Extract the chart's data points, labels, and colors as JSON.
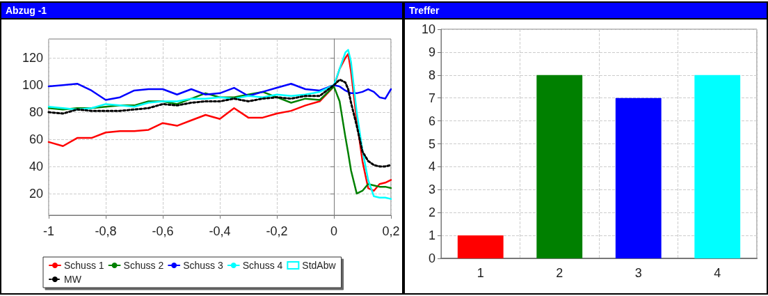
{
  "chart_data": [
    {
      "type": "line",
      "title": "Abzug -1",
      "x": [
        -1,
        -0.95,
        -0.9,
        -0.85,
        -0.8,
        -0.75,
        -0.7,
        -0.65,
        -0.6,
        -0.55,
        -0.5,
        -0.45,
        -0.4,
        -0.35,
        -0.3,
        -0.25,
        -0.2,
        -0.15,
        -0.1,
        -0.05,
        0,
        0.02,
        0.04,
        0.05,
        0.06,
        0.08,
        0.1,
        0.12,
        0.14,
        0.16,
        0.18,
        0.2
      ],
      "series": [
        {
          "name": "Schuss 1",
          "color": "#ff0000",
          "line_style": "solid",
          "values": [
            58,
            55,
            61,
            61,
            65,
            66,
            66,
            67,
            72,
            70,
            74,
            78,
            75,
            83,
            76,
            76,
            79,
            81,
            85,
            88,
            99,
            112,
            120,
            123,
            110,
            74,
            44,
            24,
            22,
            27,
            28,
            30
          ]
        },
        {
          "name": "Schuss 2",
          "color": "#008000",
          "line_style": "solid",
          "values": [
            83,
            82,
            83,
            83,
            84,
            85,
            85,
            88,
            88,
            86,
            90,
            94,
            91,
            91,
            93,
            95,
            91,
            87,
            90,
            89,
            99,
            88,
            62,
            50,
            37,
            20,
            22,
            27,
            26,
            25,
            25,
            24
          ]
        },
        {
          "name": "Schuss 3",
          "color": "#0000ff",
          "line_style": "solid",
          "values": [
            99,
            100,
            101,
            96,
            89,
            91,
            96,
            97,
            97,
            93,
            97,
            93,
            94,
            98,
            92,
            95,
            98,
            101,
            97,
            96,
            100,
            99,
            96,
            95,
            94,
            94,
            95,
            97,
            95,
            91,
            90,
            97
          ]
        },
        {
          "name": "Schuss 4",
          "color": "#00ffff",
          "line_style": "solid",
          "values": [
            84,
            83,
            82,
            83,
            86,
            85,
            84,
            87,
            88,
            88,
            90,
            90,
            91,
            90,
            92,
            91,
            93,
            92,
            93,
            95,
            100,
            112,
            124,
            126,
            117,
            80,
            52,
            30,
            18,
            17,
            17,
            16
          ]
        },
        {
          "name": "StdAbw",
          "color": "#00ffff",
          "marker": "square",
          "values": [
            null,
            null,
            null,
            null,
            null,
            null,
            null,
            null,
            null,
            null,
            null,
            null,
            null,
            null,
            null,
            null,
            null,
            null,
            null,
            null,
            null,
            null,
            null,
            null,
            null,
            null,
            null,
            null,
            null,
            null,
            null,
            null
          ]
        },
        {
          "name": "MW",
          "color": "#000000",
          "line_style": "dotted",
          "values": [
            80,
            79,
            82,
            81,
            81,
            81,
            82,
            83,
            86,
            85,
            87,
            88,
            88,
            90,
            88,
            90,
            91,
            90,
            92,
            92,
            100,
            104,
            102,
            97,
            87,
            70,
            51,
            44,
            41,
            40,
            40,
            41
          ]
        }
      ],
      "xlim": [
        -1,
        0.2
      ],
      "xticks": [
        -1,
        {
          "value": -0.8,
          "label": "-0,8"
        },
        {
          "value": -0.6,
          "label": "-0,6"
        },
        {
          "value": -0.4,
          "label": "-0,4"
        },
        {
          "value": -0.2,
          "label": "-0,2"
        },
        0,
        {
          "value": 0.2,
          "label": "0,2"
        }
      ],
      "ylim": [
        4,
        134
      ],
      "yticks": [
        20,
        40,
        60,
        80,
        100,
        120
      ],
      "grid": true,
      "legend": "bottom"
    },
    {
      "type": "bar",
      "title": "Treffer",
      "categories": [
        "1",
        "2",
        "3",
        "4"
      ],
      "values": [
        1,
        8,
        7,
        8
      ],
      "colors": [
        "#ff0000",
        "#008000",
        "#0000ff",
        "#00ffff"
      ],
      "ylim": [
        0,
        10
      ],
      "yticks": [
        0,
        1,
        2,
        3,
        4,
        5,
        6,
        7,
        8,
        9,
        10
      ],
      "grid": true
    }
  ]
}
